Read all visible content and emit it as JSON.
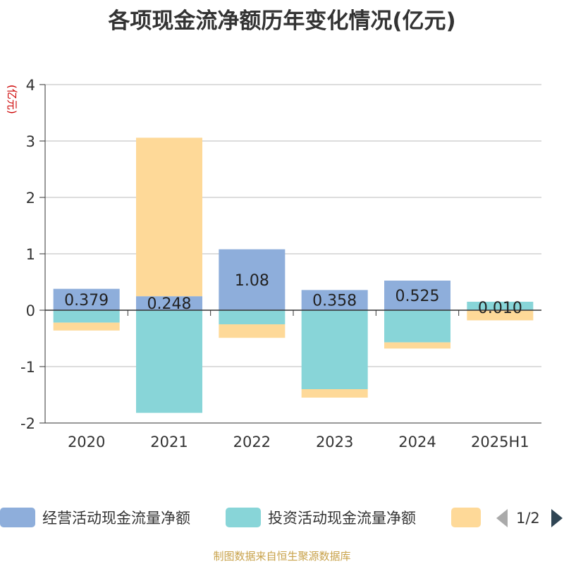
{
  "title": "各项现金流净额历年变化情况(亿元)",
  "source": "制图数据来自恒生聚源数据库",
  "legend": {
    "page": "1/2"
  },
  "chart_data": {
    "type": "bar",
    "stacked": true,
    "ylabel": "(亿元)",
    "ylim": [
      -2,
      4
    ],
    "yticks": [
      -2,
      -1,
      0,
      1,
      2,
      3,
      4
    ],
    "categories": [
      "2020",
      "2021",
      "2022",
      "2023",
      "2024",
      "2025H1"
    ],
    "series": [
      {
        "name": "经营活动现金流量净额",
        "color": "#8eaedb",
        "values": [
          0.379,
          0.248,
          1.08,
          0.358,
          0.525,
          0.01
        ],
        "labels": [
          "0.379",
          "0.248",
          "1.08",
          "0.358",
          "0.525",
          "0.010"
        ]
      },
      {
        "name": "投资活动现金流量净额",
        "color": "#88d5d8",
        "values": [
          -0.22,
          -1.82,
          -0.25,
          -1.4,
          -0.57,
          0.14
        ]
      },
      {
        "name": "",
        "color": "#fed998",
        "values": [
          -0.14,
          2.81,
          -0.24,
          -0.15,
          -0.11,
          -0.18
        ]
      }
    ],
    "grid": true
  }
}
